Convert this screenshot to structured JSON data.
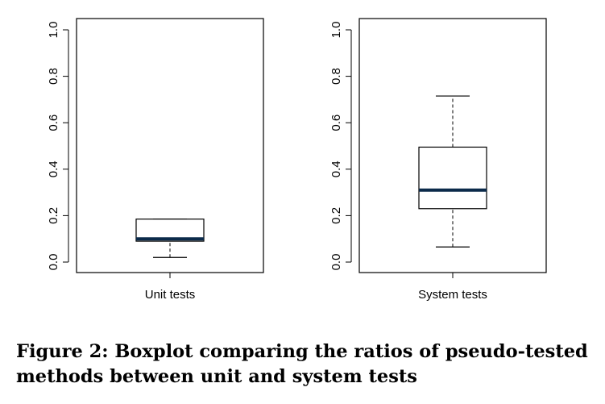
{
  "chart_data": [
    {
      "type": "boxplot",
      "category": "Unit tests",
      "ylim": [
        0.0,
        1.0
      ],
      "yticks": [
        "0.0",
        "0.2",
        "0.4",
        "0.6",
        "0.8",
        "1.0"
      ],
      "ytick_values": [
        0.0,
        0.2,
        0.4,
        0.6,
        0.8,
        1.0
      ],
      "whisker_low": 0.02,
      "q1": 0.09,
      "median": 0.1,
      "q3": 0.185,
      "whisker_high": 0.185,
      "median_color": "#0b2a4a"
    },
    {
      "type": "boxplot",
      "category": "System tests",
      "ylim": [
        0.0,
        1.0
      ],
      "yticks": [
        "0.0",
        "0.2",
        "0.4",
        "0.6",
        "0.8",
        "1.0"
      ],
      "ytick_values": [
        0.0,
        0.2,
        0.4,
        0.6,
        0.8,
        1.0
      ],
      "whisker_low": 0.065,
      "q1": 0.23,
      "median": 0.31,
      "q3": 0.495,
      "whisker_high": 0.715,
      "median_color": "#0b2a4a"
    }
  ],
  "caption": "Figure 2: Boxplot comparing the ratios of pseudo-tested methods between unit and system tests"
}
